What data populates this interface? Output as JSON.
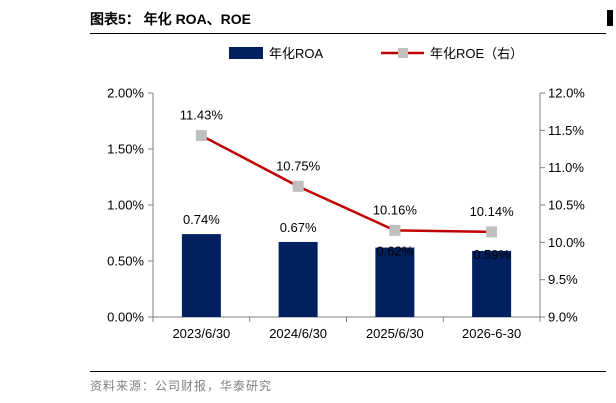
{
  "header": {
    "title": "图表5：  年化 ROA、ROE"
  },
  "footer": {
    "source": "资料来源：公司财报，华泰研究"
  },
  "colors": {
    "bar": "#002060",
    "line": "#C00000",
    "marker": "#BFBFBF",
    "axis": "#808080"
  },
  "chart_data": {
    "type": "bar",
    "categories": [
      "2023/6/30",
      "2024/6/30",
      "2025/6/30",
      "2026-6-30"
    ],
    "series": [
      {
        "name": "年化ROA",
        "type": "bar",
        "axis": "left",
        "values": [
          0.74,
          0.67,
          0.62,
          0.59
        ],
        "labels": [
          "0.74%",
          "0.67%",
          "0.62%",
          "0.59%"
        ]
      },
      {
        "name": "年化ROE（右）",
        "type": "line",
        "axis": "right",
        "values": [
          11.43,
          10.75,
          10.16,
          10.14
        ],
        "labels": [
          "11.43%",
          "10.75%",
          "10.16%",
          "10.14%"
        ]
      }
    ],
    "y_left": {
      "min": 0,
      "max": 2.0,
      "ticks": [
        "0.00%",
        "0.50%",
        "1.00%",
        "1.50%",
        "2.00%"
      ]
    },
    "y_right": {
      "min": 9.0,
      "max": 12.0,
      "ticks": [
        "9.0%",
        "9.5%",
        "10.0%",
        "10.5%",
        "11.0%",
        "11.5%",
        "12.0%"
      ]
    },
    "legend_position": "top",
    "grid": false
  }
}
